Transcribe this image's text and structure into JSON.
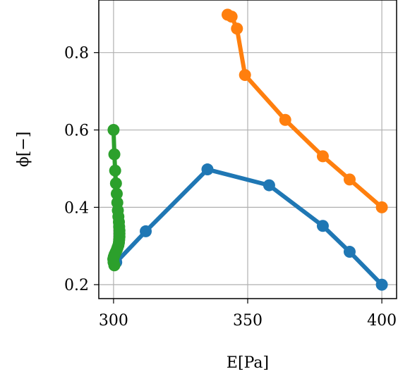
{
  "chart_data": {
    "type": "line",
    "xlabel": "E[Pa]",
    "ylabel": "ϕ[−]",
    "xlim": [
      294.5,
      405.5
    ],
    "ylim": [
      0.164,
      0.936
    ],
    "xticks": [
      300,
      350,
      400
    ],
    "yticks": [
      0.2,
      0.4,
      0.6,
      0.8
    ],
    "xtick_labels": [
      "300",
      "350",
      "400"
    ],
    "ytick_labels": [
      "0.2",
      "0.4",
      "0.6",
      "0.8"
    ],
    "grid": true,
    "series": [
      {
        "color": "#1f77b4",
        "x": [
          400,
          388,
          378,
          358,
          335,
          312,
          301
        ],
        "y": [
          0.2,
          0.285,
          0.352,
          0.457,
          0.498,
          0.338,
          0.258
        ]
      },
      {
        "color": "#ff7f0e",
        "x": [
          400,
          388,
          378,
          364,
          349,
          346,
          344,
          342.5
        ],
        "y": [
          0.4,
          0.472,
          0.532,
          0.626,
          0.742,
          0.862,
          0.893,
          0.898
        ]
      },
      {
        "color": "#2ca02c",
        "x": [
          300,
          300.3,
          300.6,
          300.9,
          301.2,
          301.4,
          301.6,
          301.8,
          302,
          302.1,
          302.2,
          302.2,
          302.2,
          302.1,
          302,
          301.8,
          301.5,
          301.2,
          300.8,
          300.4,
          300.1,
          299.9,
          300,
          300.3
        ],
        "y": [
          0.6,
          0.537,
          0.495,
          0.462,
          0.435,
          0.412,
          0.392,
          0.376,
          0.362,
          0.35,
          0.34,
          0.332,
          0.324,
          0.316,
          0.309,
          0.302,
          0.296,
          0.29,
          0.284,
          0.278,
          0.272,
          0.266,
          0.258,
          0.25
        ]
      }
    ]
  }
}
